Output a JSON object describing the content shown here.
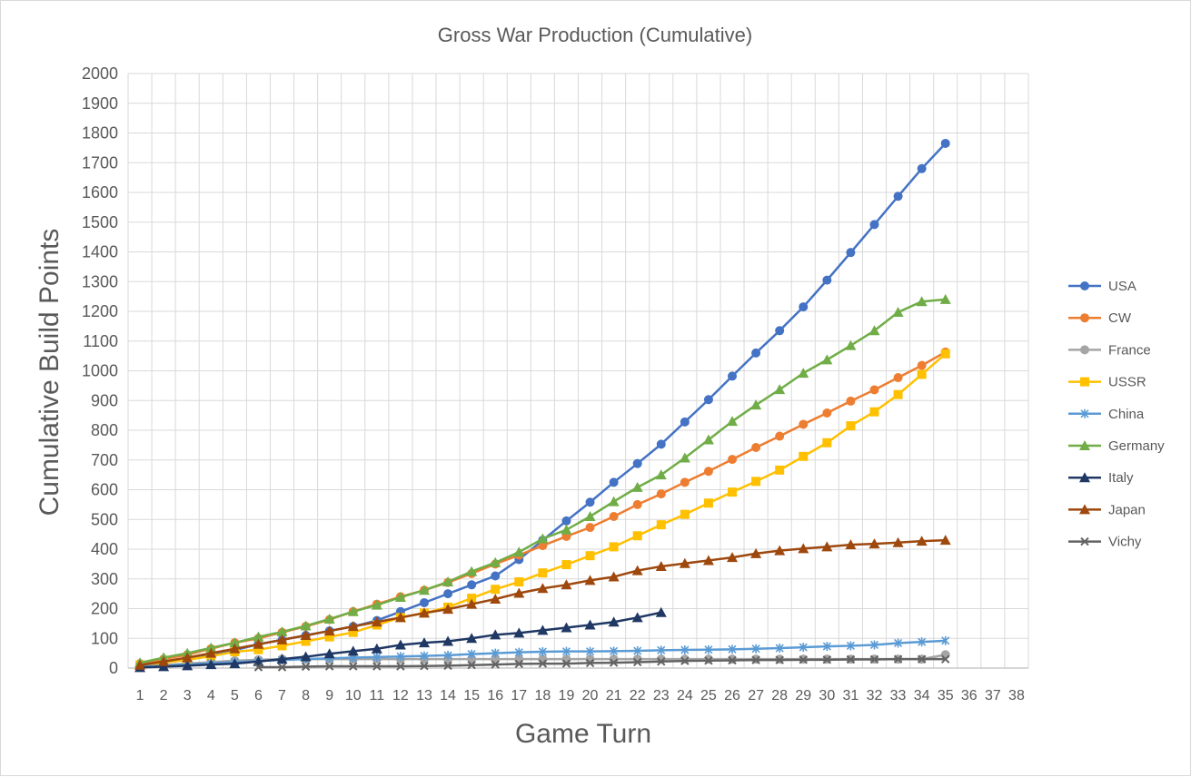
{
  "chart_data": {
    "type": "line",
    "title": "Gross War Production (Cumulative)",
    "xlabel": "Game Turn",
    "ylabel": "Cumulative Build Points",
    "xlim": [
      1,
      38
    ],
    "ylim": [
      0,
      2000
    ],
    "x_ticks": [
      "1",
      "2",
      "3",
      "4",
      "5",
      "6",
      "7",
      "8",
      "9",
      "10",
      "11",
      "12",
      "13",
      "14",
      "15",
      "16",
      "17",
      "18",
      "19",
      "20",
      "21",
      "22",
      "23",
      "24",
      "25",
      "26",
      "27",
      "28",
      "29",
      "30",
      "31",
      "32",
      "33",
      "34",
      "35",
      "36",
      "37",
      "38"
    ],
    "y_ticks": [
      "0",
      "100",
      "200",
      "300",
      "400",
      "500",
      "600",
      "700",
      "800",
      "900",
      "1000",
      "1100",
      "1200",
      "1300",
      "1400",
      "1500",
      "1600",
      "1700",
      "1800",
      "1900",
      "2000"
    ],
    "grid": true,
    "legend_position": "right",
    "series": [
      {
        "name": "USA",
        "color": "#4472C4",
        "marker": "circle",
        "start": 1,
        "values": [
          10,
          20,
          30,
          45,
          60,
          80,
          95,
          110,
          125,
          140,
          160,
          190,
          220,
          250,
          280,
          310,
          365,
          430,
          495,
          558,
          625,
          688,
          753,
          828,
          903,
          982,
          1060,
          1135,
          1215,
          1305,
          1398,
          1492,
          1587,
          1680,
          1765
        ]
      },
      {
        "name": "CW",
        "color": "#ED7D31",
        "marker": "circle",
        "start": 1,
        "values": [
          15,
          30,
          45,
          65,
          85,
          100,
          120,
          140,
          163,
          190,
          215,
          240,
          262,
          288,
          318,
          350,
          380,
          412,
          443,
          473,
          510,
          550,
          586,
          625,
          662,
          702,
          742,
          780,
          820,
          858,
          898,
          936,
          977,
          1018,
          1063
        ]
      },
      {
        "name": "France",
        "color": "#A5A5A5",
        "marker": "circle",
        "start": 1,
        "values": [
          5,
          10,
          15,
          20,
          25,
          28,
          30,
          30,
          30,
          30,
          30,
          30,
          30,
          30,
          30,
          30,
          30,
          30,
          30,
          30,
          30,
          30,
          30,
          30,
          30,
          30,
          30,
          30,
          30,
          30,
          30,
          30,
          30,
          30,
          45
        ]
      },
      {
        "name": "USSR",
        "color": "#FFC000",
        "marker": "square",
        "start": 1,
        "values": [
          10,
          18,
          28,
          40,
          55,
          62,
          75,
          90,
          105,
          120,
          145,
          170,
          185,
          205,
          235,
          265,
          290,
          320,
          348,
          378,
          408,
          445,
          482,
          517,
          555,
          592,
          628,
          666,
          712,
          758,
          815,
          862,
          920,
          988,
          1057
        ]
      },
      {
        "name": "China",
        "color": "#5B9BD5",
        "marker": "star",
        "start": 1,
        "values": [
          5,
          8,
          12,
          16,
          20,
          24,
          27,
          30,
          33,
          35,
          37,
          39,
          41,
          43,
          47,
          50,
          53,
          55,
          56,
          56,
          57,
          58,
          60,
          61,
          62,
          63,
          65,
          67,
          70,
          73,
          75,
          78,
          84,
          88,
          92
        ]
      },
      {
        "name": "Germany",
        "color": "#70AD47",
        "marker": "triangle",
        "start": 1,
        "values": [
          18,
          35,
          50,
          68,
          85,
          105,
          122,
          142,
          165,
          190,
          212,
          238,
          262,
          290,
          325,
          355,
          390,
          435,
          465,
          510,
          560,
          608,
          650,
          707,
          768,
          830,
          885,
          937,
          992,
          1037,
          1085,
          1135,
          1197,
          1233,
          1240
        ]
      },
      {
        "name": "Italy",
        "color": "#203864",
        "marker": "triangle",
        "start": 1,
        "values": [
          2,
          5,
          8,
          12,
          15,
          22,
          30,
          38,
          48,
          57,
          65,
          78,
          85,
          90,
          100,
          112,
          118,
          127,
          136,
          145,
          155,
          170,
          187
        ]
      },
      {
        "name": "Japan",
        "color": "#9E480E",
        "marker": "triangle",
        "start": 1,
        "values": [
          10,
          22,
          35,
          50,
          65,
          80,
          95,
          110,
          125,
          140,
          155,
          170,
          185,
          198,
          215,
          232,
          252,
          268,
          280,
          295,
          307,
          328,
          342,
          352,
          362,
          372,
          385,
          395,
          402,
          408,
          415,
          418,
          422,
          427,
          430
        ]
      },
      {
        "name": "Vichy",
        "color": "#636363",
        "marker": "x",
        "start": 6,
        "values": [
          3,
          3,
          5,
          6,
          6,
          6,
          6,
          7,
          8,
          10,
          12,
          14,
          15,
          15,
          17,
          18,
          20,
          22,
          24,
          25,
          26,
          27,
          27,
          28,
          28,
          29,
          29,
          30,
          30,
          30
        ]
      }
    ]
  }
}
